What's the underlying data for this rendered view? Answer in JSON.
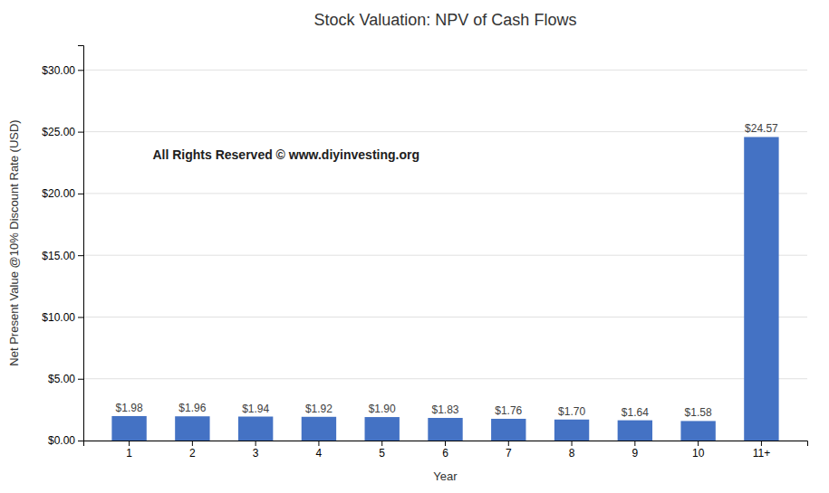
{
  "chart_data": {
    "type": "bar",
    "title": "Stock Valuation: NPV of Cash Flows",
    "xlabel": "Year",
    "ylabel": "Net Present Value @10% Discount Rate (USD)",
    "categories": [
      "1",
      "2",
      "3",
      "4",
      "5",
      "6",
      "7",
      "8",
      "9",
      "10",
      "11+"
    ],
    "values": [
      1.98,
      1.96,
      1.94,
      1.92,
      1.9,
      1.83,
      1.76,
      1.7,
      1.64,
      1.58,
      24.57
    ],
    "value_labels": [
      "$1.98",
      "$1.96",
      "$1.94",
      "$1.92",
      "$1.90",
      "$1.83",
      "$1.76",
      "$1.70",
      "$1.64",
      "$1.58",
      "$24.57"
    ],
    "data_labels": true,
    "color": "#4472C4",
    "ylim": [
      0,
      32
    ],
    "yticks": [
      {
        "value": 0,
        "label": "$0.00"
      },
      {
        "value": 5,
        "label": "$5.00"
      },
      {
        "value": 10,
        "label": "$10.00"
      },
      {
        "value": 15,
        "label": "$15.00"
      },
      {
        "value": 20,
        "label": "$20.00"
      },
      {
        "value": 25,
        "label": "$25.00"
      },
      {
        "value": 30,
        "label": "$30.00"
      }
    ],
    "grid": true,
    "annotations": [
      "All Rights Reserved © www.diyinvesting.org"
    ]
  }
}
